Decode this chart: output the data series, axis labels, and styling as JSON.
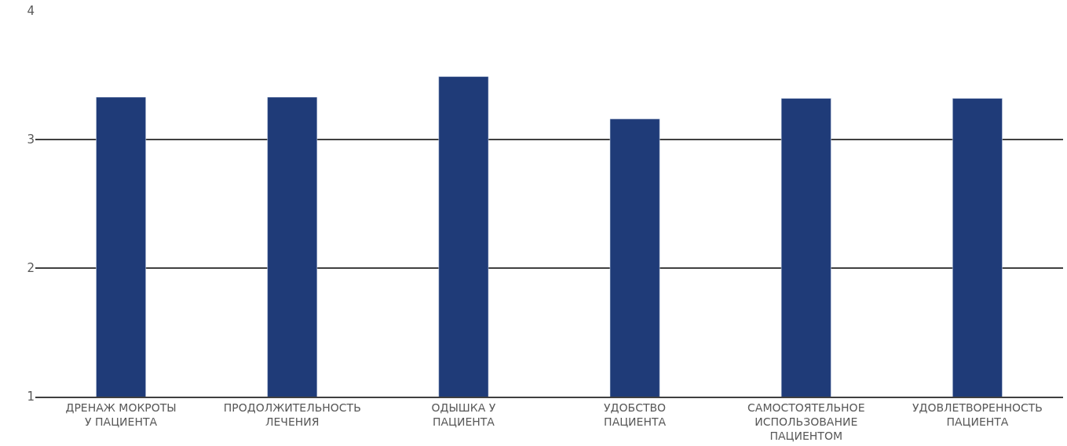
{
  "chart_data": {
    "type": "bar",
    "categories": [
      "ДРЕНАЖ МОКРОТЫ\nУ ПАЦИЕНТА",
      "ПРОДОЛЖИТЕЛЬНОСТЬ\nЛЕЧЕНИЯ",
      "ОДЫШКА У\nПАЦИЕНТА",
      "УДОБСТВО\nПАЦИЕНТА",
      "САМОСТОЯТЕЛЬНОЕ\nИСПОЛЬЗОВАНИЕ\nПАЦИЕНТОМ",
      "УДОВЛЕТВОРЕННОСТЬ\nПАЦИЕНТА"
    ],
    "values": [
      3.33,
      3.33,
      3.49,
      3.16,
      3.32,
      3.32
    ],
    "color": "#1f3b78",
    "ylim": [
      1,
      4
    ],
    "yticks": [
      1,
      2,
      3,
      4
    ],
    "grid": "y",
    "legend": false
  }
}
